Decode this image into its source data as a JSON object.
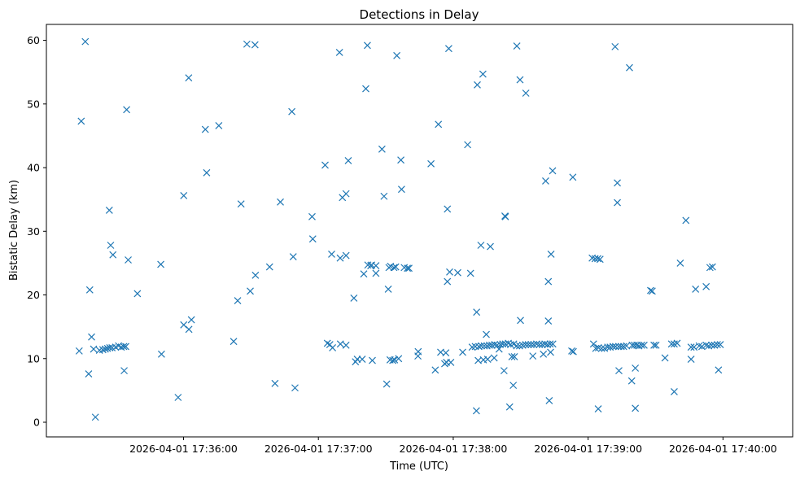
{
  "chart_data": {
    "type": "scatter",
    "title": "Detections in Delay",
    "xlabel": "Time (UTC)",
    "ylabel": "Bistatic Delay (km)",
    "marker": "x",
    "color": "#1f77b4",
    "grid": false,
    "xlim": [
      "2026-04-01 17:34:59",
      "2026-04-01 17:40:31"
    ],
    "ylim": [
      -2.3,
      62.5
    ],
    "xticks": [
      {
        "value": "2026-04-01 17:36:00",
        "label": "2026-04-01 17:36:00"
      },
      {
        "value": "2026-04-01 17:37:00",
        "label": "2026-04-01 17:37:00"
      },
      {
        "value": "2026-04-01 17:38:00",
        "label": "2026-04-01 17:38:00"
      },
      {
        "value": "2026-04-01 17:39:00",
        "label": "2026-04-01 17:39:00"
      },
      {
        "value": "2026-04-01 17:40:00",
        "label": "2026-04-01 17:40:00"
      }
    ],
    "yticks": [
      0,
      10,
      20,
      30,
      40,
      50,
      60
    ],
    "points": [
      {
        "x": "2026-04-01 17:35:13.6",
        "y": 11.2
      },
      {
        "x": "2026-04-01 17:35:14.5",
        "y": 47.3
      },
      {
        "x": "2026-04-01 17:35:16.3",
        "y": 59.8
      },
      {
        "x": "2026-04-01 17:35:17.8",
        "y": 7.6
      },
      {
        "x": "2026-04-01 17:35:18.3",
        "y": 20.8
      },
      {
        "x": "2026-04-01 17:35:19.1",
        "y": 13.4
      },
      {
        "x": "2026-04-01 17:35:20.0",
        "y": 11.5
      },
      {
        "x": "2026-04-01 17:35:20.8",
        "y": 0.8
      },
      {
        "x": "2026-04-01 17:35:22.6",
        "y": 11.3
      },
      {
        "x": "2026-04-01 17:35:24.1",
        "y": 11.4
      },
      {
        "x": "2026-04-01 17:35:25.2",
        "y": 11.5
      },
      {
        "x": "2026-04-01 17:35:26.2",
        "y": 11.6
      },
      {
        "x": "2026-04-01 17:35:27.0",
        "y": 33.3
      },
      {
        "x": "2026-04-01 17:35:27.2",
        "y": 11.7
      },
      {
        "x": "2026-04-01 17:35:27.6",
        "y": 27.8
      },
      {
        "x": "2026-04-01 17:35:28.2",
        "y": 11.7
      },
      {
        "x": "2026-04-01 17:35:28.6",
        "y": 26.3
      },
      {
        "x": "2026-04-01 17:35:29.8",
        "y": 11.8
      },
      {
        "x": "2026-04-01 17:35:31.1",
        "y": 12.0
      },
      {
        "x": "2026-04-01 17:35:32.3",
        "y": 11.8
      },
      {
        "x": "2026-04-01 17:35:33.4",
        "y": 11.9
      },
      {
        "x": "2026-04-01 17:35:33.6",
        "y": 8.1
      },
      {
        "x": "2026-04-01 17:35:34.3",
        "y": 11.9
      },
      {
        "x": "2026-04-01 17:35:34.7",
        "y": 49.1
      },
      {
        "x": "2026-04-01 17:35:35.4",
        "y": 25.5
      },
      {
        "x": "2026-04-01 17:35:39.5",
        "y": 20.2
      },
      {
        "x": "2026-04-01 17:35:49.9",
        "y": 24.8
      },
      {
        "x": "2026-04-01 17:35:50.2",
        "y": 10.7
      },
      {
        "x": "2026-04-01 17:35:57.6",
        "y": 3.9
      },
      {
        "x": "2026-04-01 17:36:00.1",
        "y": 35.6
      },
      {
        "x": "2026-04-01 17:36:00.1",
        "y": 15.3
      },
      {
        "x": "2026-04-01 17:36:02.3",
        "y": 54.1
      },
      {
        "x": "2026-04-01 17:36:02.4",
        "y": 14.6
      },
      {
        "x": "2026-04-01 17:36:03.5",
        "y": 16.1
      },
      {
        "x": "2026-04-01 17:36:09.7",
        "y": 46.0
      },
      {
        "x": "2026-04-01 17:36:10.3",
        "y": 39.2
      },
      {
        "x": "2026-04-01 17:36:15.7",
        "y": 46.6
      },
      {
        "x": "2026-04-01 17:36:22.3",
        "y": 12.7
      },
      {
        "x": "2026-04-01 17:36:24.1",
        "y": 19.1
      },
      {
        "x": "2026-04-01 17:36:25.6",
        "y": 34.3
      },
      {
        "x": "2026-04-01 17:36:28.2",
        "y": 59.4
      },
      {
        "x": "2026-04-01 17:36:29.7",
        "y": 20.6
      },
      {
        "x": "2026-04-01 17:36:31.8",
        "y": 59.3
      },
      {
        "x": "2026-04-01 17:36:32.0",
        "y": 23.1
      },
      {
        "x": "2026-04-01 17:36:38.3",
        "y": 24.4
      },
      {
        "x": "2026-04-01 17:36:40.7",
        "y": 6.1
      },
      {
        "x": "2026-04-01 17:36:43.1",
        "y": 34.6
      },
      {
        "x": "2026-04-01 17:36:48.2",
        "y": 48.8
      },
      {
        "x": "2026-04-01 17:36:48.8",
        "y": 26.0
      },
      {
        "x": "2026-04-01 17:36:49.6",
        "y": 5.4
      },
      {
        "x": "2026-04-01 17:36:57.2",
        "y": 32.3
      },
      {
        "x": "2026-04-01 17:36:57.5",
        "y": 28.8
      },
      {
        "x": "2026-04-01 17:37:03.0",
        "y": 40.4
      },
      {
        "x": "2026-04-01 17:37:04.0",
        "y": 12.4
      },
      {
        "x": "2026-04-01 17:37:05.1",
        "y": 12.2
      },
      {
        "x": "2026-04-01 17:37:05.9",
        "y": 26.4
      },
      {
        "x": "2026-04-01 17:37:06.3",
        "y": 11.7
      },
      {
        "x": "2026-04-01 17:37:09.4",
        "y": 58.1
      },
      {
        "x": "2026-04-01 17:37:09.7",
        "y": 25.8
      },
      {
        "x": "2026-04-01 17:37:09.8",
        "y": 12.3
      },
      {
        "x": "2026-04-01 17:37:10.7",
        "y": 35.3
      },
      {
        "x": "2026-04-01 17:37:12.3",
        "y": 35.9
      },
      {
        "x": "2026-04-01 17:37:12.3",
        "y": 26.2
      },
      {
        "x": "2026-04-01 17:37:12.3",
        "y": 12.1
      },
      {
        "x": "2026-04-01 17:37:13.3",
        "y": 41.1
      },
      {
        "x": "2026-04-01 17:37:15.8",
        "y": 19.5
      },
      {
        "x": "2026-04-01 17:37:16.5",
        "y": 9.5
      },
      {
        "x": "2026-04-01 17:37:17.3",
        "y": 9.9
      },
      {
        "x": "2026-04-01 17:37:19.5",
        "y": 9.9
      },
      {
        "x": "2026-04-01 17:37:20.2",
        "y": 23.3
      },
      {
        "x": "2026-04-01 17:37:21.1",
        "y": 52.4
      },
      {
        "x": "2026-04-01 17:37:21.8",
        "y": 59.2
      },
      {
        "x": "2026-04-01 17:37:22.0",
        "y": 24.7
      },
      {
        "x": "2026-04-01 17:37:23.3",
        "y": 24.6
      },
      {
        "x": "2026-04-01 17:37:23.7",
        "y": 24.7
      },
      {
        "x": "2026-04-01 17:37:24.0",
        "y": 9.7
      },
      {
        "x": "2026-04-01 17:37:25.6",
        "y": 23.4
      },
      {
        "x": "2026-04-01 17:37:25.6",
        "y": 24.6
      },
      {
        "x": "2026-04-01 17:37:28.3",
        "y": 42.9
      },
      {
        "x": "2026-04-01 17:37:29.2",
        "y": 35.5
      },
      {
        "x": "2026-04-01 17:37:30.4",
        "y": 6.0
      },
      {
        "x": "2026-04-01 17:37:31.1",
        "y": 20.9
      },
      {
        "x": "2026-04-01 17:37:31.4",
        "y": 24.3
      },
      {
        "x": "2026-04-01 17:37:31.9",
        "y": 9.8
      },
      {
        "x": "2026-04-01 17:37:32.1",
        "y": 24.5
      },
      {
        "x": "2026-04-01 17:37:33.1",
        "y": 9.7
      },
      {
        "x": "2026-04-01 17:37:33.6",
        "y": 24.3
      },
      {
        "x": "2026-04-01 17:37:33.9",
        "y": 9.8
      },
      {
        "x": "2026-04-01 17:37:34.4",
        "y": 24.4
      },
      {
        "x": "2026-04-01 17:37:34.9",
        "y": 57.6
      },
      {
        "x": "2026-04-01 17:37:35.7",
        "y": 10.0
      },
      {
        "x": "2026-04-01 17:37:36.7",
        "y": 41.2
      },
      {
        "x": "2026-04-01 17:37:37.0",
        "y": 36.6
      },
      {
        "x": "2026-04-01 17:37:38.2",
        "y": 24.3
      },
      {
        "x": "2026-04-01 17:37:39.6",
        "y": 24.2
      },
      {
        "x": "2026-04-01 17:37:40.3",
        "y": 24.2
      },
      {
        "x": "2026-04-01 17:37:44.3",
        "y": 10.4
      },
      {
        "x": "2026-04-01 17:37:44.4",
        "y": 11.1
      },
      {
        "x": "2026-04-01 17:37:50.1",
        "y": 40.6
      },
      {
        "x": "2026-04-01 17:37:52.0",
        "y": 8.2
      },
      {
        "x": "2026-04-01 17:37:53.4",
        "y": 46.8
      },
      {
        "x": "2026-04-01 17:37:54.4",
        "y": 11.0
      },
      {
        "x": "2026-04-01 17:37:56.2",
        "y": 9.2
      },
      {
        "x": "2026-04-01 17:37:56.7",
        "y": 10.9
      },
      {
        "x": "2026-04-01 17:37:57.0",
        "y": 9.4
      },
      {
        "x": "2026-04-01 17:37:57.4",
        "y": 22.1
      },
      {
        "x": "2026-04-01 17:37:57.4",
        "y": 33.5
      },
      {
        "x": "2026-04-01 17:37:58.0",
        "y": 58.7
      },
      {
        "x": "2026-04-01 17:37:58.4",
        "y": 23.6
      },
      {
        "x": "2026-04-01 17:37:58.9",
        "y": 9.4
      },
      {
        "x": "2026-04-01 17:38:02.0",
        "y": 23.5
      },
      {
        "x": "2026-04-01 17:38:04.2",
        "y": 11.0
      },
      {
        "x": "2026-04-01 17:38:06.4",
        "y": 43.6
      },
      {
        "x": "2026-04-01 17:38:07.7",
        "y": 23.4
      },
      {
        "x": "2026-04-01 17:38:08.4",
        "y": 11.8
      },
      {
        "x": "2026-04-01 17:38:09.8",
        "y": 11.9
      },
      {
        "x": "2026-04-01 17:38:10.3",
        "y": 1.8
      },
      {
        "x": "2026-04-01 17:38:10.4",
        "y": 17.3
      },
      {
        "x": "2026-04-01 17:38:10.7",
        "y": 53.0
      },
      {
        "x": "2026-04-01 17:38:11.1",
        "y": 9.7
      },
      {
        "x": "2026-04-01 17:38:11.4",
        "y": 11.9
      },
      {
        "x": "2026-04-01 17:38:12.3",
        "y": 27.8
      },
      {
        "x": "2026-04-01 17:38:12.5",
        "y": 12.0
      },
      {
        "x": "2026-04-01 17:38:13.2",
        "y": 54.7
      },
      {
        "x": "2026-04-01 17:38:13.4",
        "y": 9.8
      },
      {
        "x": "2026-04-01 17:38:13.8",
        "y": 12.0
      },
      {
        "x": "2026-04-01 17:38:14.7",
        "y": 13.8
      },
      {
        "x": "2026-04-01 17:38:15.0",
        "y": 12.0
      },
      {
        "x": "2026-04-01 17:38:15.3",
        "y": 9.9
      },
      {
        "x": "2026-04-01 17:38:16.1",
        "y": 12.1
      },
      {
        "x": "2026-04-01 17:38:16.5",
        "y": 27.6
      },
      {
        "x": "2026-04-01 17:38:17.2",
        "y": 12.1
      },
      {
        "x": "2026-04-01 17:38:18.2",
        "y": 10.1
      },
      {
        "x": "2026-04-01 17:38:18.4",
        "y": 12.2
      },
      {
        "x": "2026-04-01 17:38:19.5",
        "y": 12.1
      },
      {
        "x": "2026-04-01 17:38:20.4",
        "y": 11.5
      },
      {
        "x": "2026-04-01 17:38:20.9",
        "y": 12.2
      },
      {
        "x": "2026-04-01 17:38:22.0",
        "y": 12.3
      },
      {
        "x": "2026-04-01 17:38:22.6",
        "y": 8.1
      },
      {
        "x": "2026-04-01 17:38:23.0",
        "y": 32.4
      },
      {
        "x": "2026-04-01 17:38:23.2",
        "y": 12.3
      },
      {
        "x": "2026-04-01 17:38:23.2",
        "y": 32.3
      },
      {
        "x": "2026-04-01 17:38:24.5",
        "y": 12.4
      },
      {
        "x": "2026-04-01 17:38:25.1",
        "y": 2.4
      },
      {
        "x": "2026-04-01 17:38:25.5",
        "y": 12.2
      },
      {
        "x": "2026-04-01 17:38:26.1",
        "y": 10.3
      },
      {
        "x": "2026-04-01 17:38:26.7",
        "y": 5.8
      },
      {
        "x": "2026-04-01 17:38:26.9",
        "y": 12.3
      },
      {
        "x": "2026-04-01 17:38:27.2",
        "y": 10.3
      },
      {
        "x": "2026-04-01 17:38:28.2",
        "y": 12.0
      },
      {
        "x": "2026-04-01 17:38:28.3",
        "y": 59.1
      },
      {
        "x": "2026-04-01 17:38:29.5",
        "y": 12.0
      },
      {
        "x": "2026-04-01 17:38:29.7",
        "y": 53.8
      },
      {
        "x": "2026-04-01 17:38:29.9",
        "y": 16.0
      },
      {
        "x": "2026-04-01 17:38:30.9",
        "y": 12.1
      },
      {
        "x": "2026-04-01 17:38:32.2",
        "y": 12.2
      },
      {
        "x": "2026-04-01 17:38:32.3",
        "y": 51.7
      },
      {
        "x": "2026-04-01 17:38:33.4",
        "y": 12.2
      },
      {
        "x": "2026-04-01 17:38:34.6",
        "y": 12.2
      },
      {
        "x": "2026-04-01 17:38:35.4",
        "y": 10.4
      },
      {
        "x": "2026-04-01 17:38:35.8",
        "y": 12.2
      },
      {
        "x": "2026-04-01 17:38:37.1",
        "y": 12.3
      },
      {
        "x": "2026-04-01 17:38:38.3",
        "y": 12.2
      },
      {
        "x": "2026-04-01 17:38:39.6",
        "y": 12.2
      },
      {
        "x": "2026-04-01 17:38:40.1",
        "y": 10.7
      },
      {
        "x": "2026-04-01 17:38:40.8",
        "y": 12.3
      },
      {
        "x": "2026-04-01 17:38:41.1",
        "y": 37.9
      },
      {
        "x": "2026-04-01 17:38:41.9",
        "y": 12.2
      },
      {
        "x": "2026-04-01 17:38:42.3",
        "y": 22.1
      },
      {
        "x": "2026-04-01 17:38:42.3",
        "y": 15.9
      },
      {
        "x": "2026-04-01 17:38:42.7",
        "y": 3.4
      },
      {
        "x": "2026-04-01 17:38:43.1",
        "y": 12.3
      },
      {
        "x": "2026-04-01 17:38:43.3",
        "y": 11.0
      },
      {
        "x": "2026-04-01 17:38:43.5",
        "y": 26.4
      },
      {
        "x": "2026-04-01 17:38:44.2",
        "y": 39.5
      },
      {
        "x": "2026-04-01 17:38:44.3",
        "y": 12.3
      },
      {
        "x": "2026-04-01 17:38:52.7",
        "y": 11.2
      },
      {
        "x": "2026-04-01 17:38:53.2",
        "y": 38.5
      },
      {
        "x": "2026-04-01 17:38:53.4",
        "y": 11.1
      },
      {
        "x": "2026-04-01 17:39:01.8",
        "y": 25.8
      },
      {
        "x": "2026-04-01 17:39:02.4",
        "y": 12.3
      },
      {
        "x": "2026-04-01 17:39:03.1",
        "y": 25.7
      },
      {
        "x": "2026-04-01 17:39:03.4",
        "y": 11.6
      },
      {
        "x": "2026-04-01 17:39:04.3",
        "y": 25.7
      },
      {
        "x": "2026-04-01 17:39:04.5",
        "y": 2.1
      },
      {
        "x": "2026-04-01 17:39:04.6",
        "y": 11.7
      },
      {
        "x": "2026-04-01 17:39:05.3",
        "y": 25.6
      },
      {
        "x": "2026-04-01 17:39:06.0",
        "y": 11.6
      },
      {
        "x": "2026-04-01 17:39:07.3",
        "y": 11.6
      },
      {
        "x": "2026-04-01 17:39:08.7",
        "y": 11.8
      },
      {
        "x": "2026-04-01 17:39:09.8",
        "y": 11.8
      },
      {
        "x": "2026-04-01 17:39:11.1",
        "y": 11.9
      },
      {
        "x": "2026-04-01 17:39:12.0",
        "y": 59.0
      },
      {
        "x": "2026-04-01 17:39:12.2",
        "y": 11.9
      },
      {
        "x": "2026-04-01 17:39:13.0",
        "y": 37.6
      },
      {
        "x": "2026-04-01 17:39:13.0",
        "y": 34.5
      },
      {
        "x": "2026-04-01 17:39:13.6",
        "y": 11.9
      },
      {
        "x": "2026-04-01 17:39:13.7",
        "y": 8.1
      },
      {
        "x": "2026-04-01 17:39:14.7",
        "y": 11.9
      },
      {
        "x": "2026-04-01 17:39:15.8",
        "y": 11.9
      },
      {
        "x": "2026-04-01 17:39:17.1",
        "y": 12.0
      },
      {
        "x": "2026-04-01 17:39:18.4",
        "y": 55.7
      },
      {
        "x": "2026-04-01 17:39:19.4",
        "y": 6.5
      },
      {
        "x": "2026-04-01 17:39:19.6",
        "y": 12.1
      },
      {
        "x": "2026-04-01 17:39:20.6",
        "y": 12.1
      },
      {
        "x": "2026-04-01 17:39:21.0",
        "y": 2.2
      },
      {
        "x": "2026-04-01 17:39:21.0",
        "y": 8.5
      },
      {
        "x": "2026-04-01 17:39:21.7",
        "y": 12.1
      },
      {
        "x": "2026-04-01 17:39:22.6",
        "y": 12.0
      },
      {
        "x": "2026-04-01 17:39:23.8",
        "y": 12.1
      },
      {
        "x": "2026-04-01 17:39:24.9",
        "y": 12.1
      },
      {
        "x": "2026-04-01 17:39:27.8",
        "y": 20.7
      },
      {
        "x": "2026-04-01 17:39:28.5",
        "y": 20.6
      },
      {
        "x": "2026-04-01 17:39:29.3",
        "y": 12.1
      },
      {
        "x": "2026-04-01 17:39:30.2",
        "y": 12.1
      },
      {
        "x": "2026-04-01 17:39:34.2",
        "y": 10.1
      },
      {
        "x": "2026-04-01 17:39:37.1",
        "y": 12.3
      },
      {
        "x": "2026-04-01 17:39:38.3",
        "y": 4.8
      },
      {
        "x": "2026-04-01 17:39:38.3",
        "y": 12.3
      },
      {
        "x": "2026-04-01 17:39:39.6",
        "y": 12.4
      },
      {
        "x": "2026-04-01 17:39:41.0",
        "y": 25.0
      },
      {
        "x": "2026-04-01 17:39:43.5",
        "y": 31.7
      },
      {
        "x": "2026-04-01 17:39:45.8",
        "y": 9.9
      },
      {
        "x": "2026-04-01 17:39:45.8",
        "y": 11.8
      },
      {
        "x": "2026-04-01 17:39:47.1",
        "y": 11.8
      },
      {
        "x": "2026-04-01 17:39:47.8",
        "y": 20.9
      },
      {
        "x": "2026-04-01 17:39:49.4",
        "y": 12.0
      },
      {
        "x": "2026-04-01 17:39:50.6",
        "y": 11.9
      },
      {
        "x": "2026-04-01 17:39:52.5",
        "y": 21.3
      },
      {
        "x": "2026-04-01 17:39:52.5",
        "y": 12.1
      },
      {
        "x": "2026-04-01 17:39:53.6",
        "y": 12.0
      },
      {
        "x": "2026-04-01 17:39:54.2",
        "y": 24.3
      },
      {
        "x": "2026-04-01 17:39:54.9",
        "y": 12.1
      },
      {
        "x": "2026-04-01 17:39:55.3",
        "y": 24.4
      },
      {
        "x": "2026-04-01 17:39:56.2",
        "y": 12.1
      },
      {
        "x": "2026-04-01 17:39:57.5",
        "y": 12.2
      },
      {
        "x": "2026-04-01 17:39:58.0",
        "y": 8.2
      },
      {
        "x": "2026-04-01 17:39:58.8",
        "y": 12.2
      }
    ]
  }
}
